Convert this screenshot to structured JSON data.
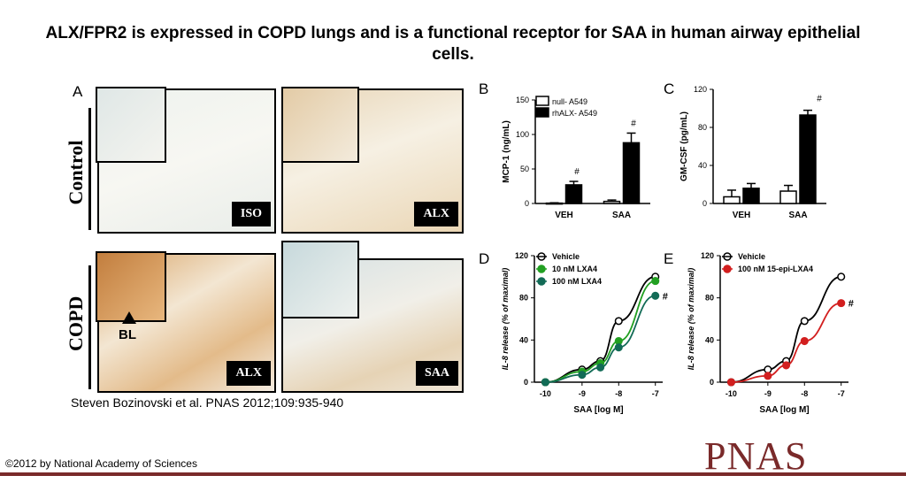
{
  "slide": {
    "title": "ALX/FPR2 is expressed in COPD lungs and is a functional receptor for SAA in human airway epithelial cells.",
    "citation": "Steven Bozinovski et al. PNAS 2012;109:935-940",
    "copyright": "©2012 by National Academy of Sciences",
    "logo": "PNAS"
  },
  "panelA": {
    "label": "A",
    "row_labels": [
      "Control",
      "COPD"
    ],
    "tags": [
      "ISO",
      "ALX",
      "ALX",
      "SAA"
    ],
    "bl_label": "BL"
  },
  "panel_labels": {
    "B": "B",
    "C": "C",
    "D": "D",
    "E": "E"
  },
  "colors": {
    "brown": "#c89a62",
    "black": "#000000",
    "green": "#22a022",
    "teal": "#126b56",
    "red": "#d21f1f",
    "logo": "#7a2a2a"
  },
  "chart_data": [
    {
      "type": "bar",
      "panel": "B",
      "categories": [
        "VEH",
        "SAA"
      ],
      "ylabel": "MCP-1 (ng/mL)",
      "ylim": [
        0,
        150
      ],
      "yticks": [
        "0",
        "50",
        "100",
        "150"
      ],
      "series": [
        {
          "name": "null- A549",
          "values": [
            0.5,
            3
          ],
          "errors": [
            0.5,
            2
          ],
          "fill": "#ffffff"
        },
        {
          "name": "rhALX- A549",
          "values": [
            27,
            88
          ],
          "errors": [
            5,
            14
          ],
          "fill": "#000000"
        }
      ],
      "annotations": [
        "#",
        "#"
      ]
    },
    {
      "type": "bar",
      "panel": "C",
      "categories": [
        "VEH",
        "SAA"
      ],
      "ylabel": "GM-CSF (pg/mL)",
      "ylim": [
        0,
        120
      ],
      "yticks": [
        "0",
        "40",
        "80",
        "120"
      ],
      "series": [
        {
          "values": [
            7,
            13
          ],
          "errors": [
            7,
            6
          ],
          "fill": "#ffffff"
        },
        {
          "values": [
            16,
            93
          ],
          "errors": [
            5,
            5
          ],
          "fill": "#000000"
        }
      ],
      "annotations": [
        "#"
      ]
    },
    {
      "type": "line",
      "panel": "D",
      "xlabel": "SAA  [log M]",
      "ylabel": "IL-8 release (% of maximal)",
      "xlim": [
        -10.3,
        -6.8
      ],
      "ylim": [
        0,
        120
      ],
      "xticks": [
        "-10",
        "-9",
        "-8",
        "-7"
      ],
      "yticks": [
        "0",
        "40",
        "80",
        "120"
      ],
      "x": [
        -10,
        -9,
        -8.5,
        -8,
        -7
      ],
      "series": [
        {
          "name": "Vehicle",
          "values": [
            0,
            12,
            20,
            58,
            100
          ],
          "color": "#000000",
          "fill": "#ffffff"
        },
        {
          "name": "10 nM LXA4",
          "values": [
            0,
            10,
            18,
            39,
            96
          ],
          "color": "#22a022",
          "fill": "#22a022"
        },
        {
          "name": "100 nM LXA4",
          "values": [
            0,
            7,
            14,
            33,
            82
          ],
          "color": "#126b56",
          "fill": "#126b56"
        }
      ],
      "annotations": [
        "#"
      ]
    },
    {
      "type": "line",
      "panel": "E",
      "xlabel": "SAA  [log M]",
      "ylabel": "IL-8 release (% of maximal)",
      "xlim": [
        -10.3,
        -6.8
      ],
      "ylim": [
        0,
        120
      ],
      "xticks": [
        "-10",
        "-9",
        "-8",
        "-7"
      ],
      "yticks": [
        "0",
        "40",
        "80",
        "120"
      ],
      "x": [
        -10,
        -9,
        -8.5,
        -8,
        -7
      ],
      "series": [
        {
          "name": "Vehicle",
          "values": [
            0,
            12,
            20,
            58,
            100
          ],
          "color": "#000000",
          "fill": "#ffffff"
        },
        {
          "name": "100 nM 15-epi-LXA4",
          "values": [
            0,
            6,
            16,
            39,
            75
          ],
          "color": "#d21f1f",
          "fill": "#d21f1f"
        }
      ],
      "annotations": [
        "#"
      ]
    }
  ]
}
